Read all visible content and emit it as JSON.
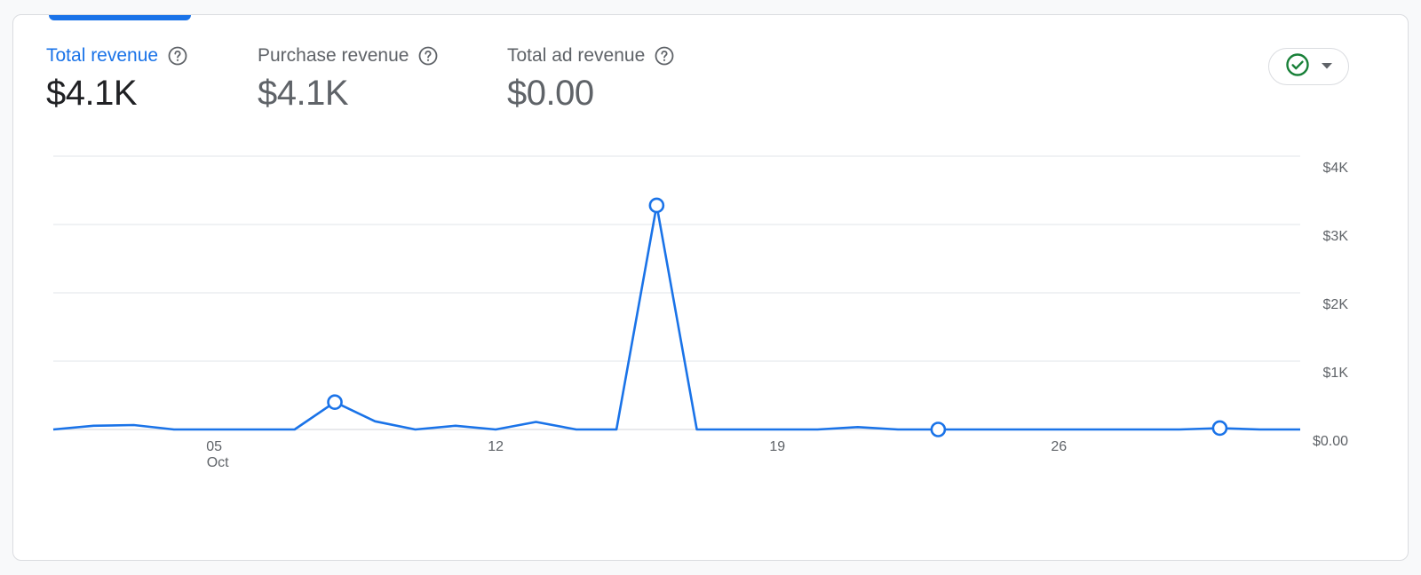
{
  "metrics": [
    {
      "label": "Total revenue",
      "value": "$4.1K",
      "active": true
    },
    {
      "label": "Purchase revenue",
      "value": "$4.1K",
      "active": false
    },
    {
      "label": "Total ad revenue",
      "value": "$0.00",
      "active": false
    }
  ],
  "status_button": {
    "icon": "check-circle-icon",
    "dropdown_icon": "caret-down-icon"
  },
  "colors": {
    "accent": "#1a73e8",
    "grid": "#e8eaed",
    "axis": "#5f6368",
    "status_ok": "#188038"
  },
  "chart_data": {
    "type": "line",
    "x_start_day": 1,
    "month_label": "Oct",
    "x_ticks": [
      {
        "day": 5,
        "label": "05",
        "sublabel": "Oct"
      },
      {
        "day": 12,
        "label": "12"
      },
      {
        "day": 19,
        "label": "19"
      },
      {
        "day": 26,
        "label": "26"
      }
    ],
    "y_ticks": [
      {
        "value": 0,
        "label": "$0.00"
      },
      {
        "value": 1000,
        "label": "$1K"
      },
      {
        "value": 2000,
        "label": "$2K"
      },
      {
        "value": 3000,
        "label": "$3K"
      },
      {
        "value": 4000,
        "label": "$4K"
      }
    ],
    "ylim": [
      0,
      4000
    ],
    "grid": true,
    "series": [
      {
        "values": [
          0,
          55,
          65,
          0,
          0,
          0,
          0,
          400,
          120,
          0,
          55,
          0,
          110,
          0,
          0,
          3280,
          0,
          0,
          0,
          0,
          35,
          0,
          0,
          0,
          0,
          0,
          0,
          0,
          0,
          20,
          0,
          0
        ],
        "highlight_days": [
          8,
          16,
          23,
          30
        ]
      }
    ]
  }
}
